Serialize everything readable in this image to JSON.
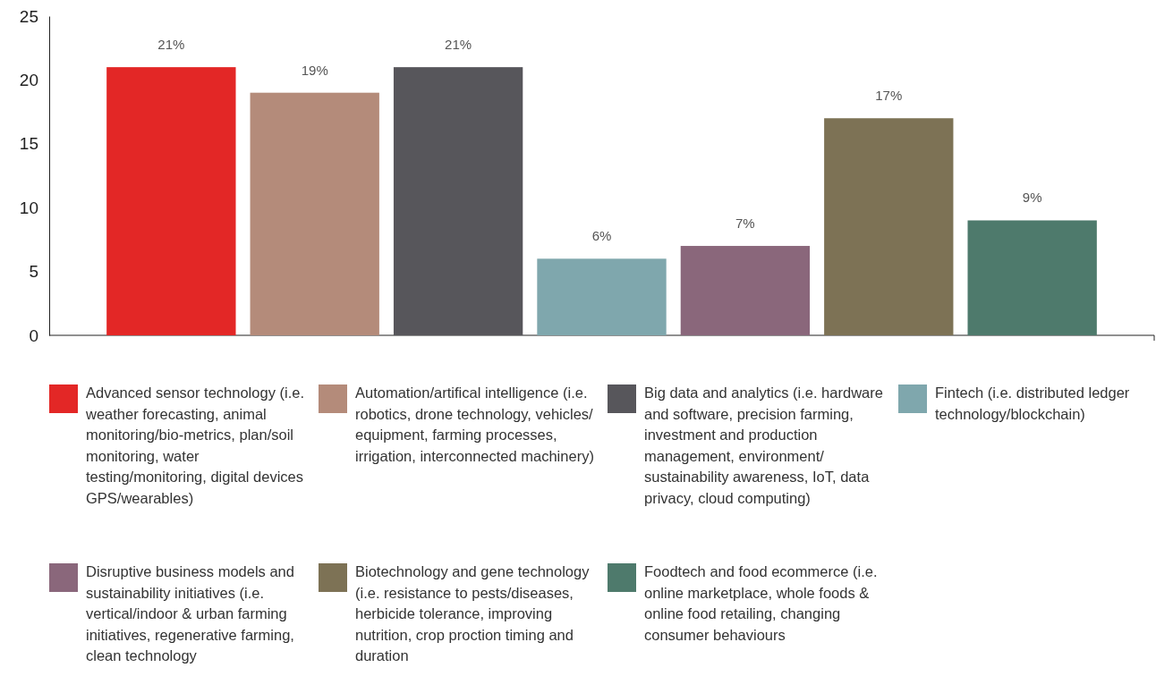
{
  "chart_data": {
    "type": "bar",
    "categories": [
      null,
      null,
      null,
      null,
      null,
      null,
      null
    ],
    "ylim": [
      0,
      25
    ],
    "yticks": [
      0,
      5,
      10,
      15,
      20,
      25
    ],
    "grid": false,
    "legend": "bottom",
    "data_labels": true,
    "series": [
      {
        "name": "Advanced sensor technology (i.e. weather forecasting, animal monitoring/bio-metrics, plan/soil monitoring, water testing/monitoring, digital devices GPS/wearables)",
        "color": "#e32726",
        "values": [
          21,
          null,
          null,
          null,
          null,
          null,
          null
        ],
        "value_labels": [
          "21%",
          null,
          null,
          null,
          null,
          null,
          null
        ]
      },
      {
        "name": "Automation/artifical intelligence (i.e. robotics, drone technology, vehicles/ equipment, farming processes, irrigation, interconnected machinery)",
        "color": "#b48b7a",
        "values": [
          null,
          19,
          null,
          null,
          null,
          null,
          null
        ],
        "value_labels": [
          null,
          "19%",
          null,
          null,
          null,
          null,
          null
        ]
      },
      {
        "name": "Big data and analytics (i.e. hardware and software, precision farming, investment and production management, environment/ sustainability awareness, IoT, data privacy, cloud computing)",
        "color": "#57565b",
        "values": [
          null,
          null,
          21,
          null,
          null,
          null,
          null
        ],
        "value_labels": [
          null,
          null,
          "21%",
          null,
          null,
          null,
          null
        ]
      },
      {
        "name": "Fintech (i.e. distributed ledger technology/blockchain)",
        "color": "#7fa7ad",
        "values": [
          null,
          null,
          null,
          6,
          null,
          null,
          null
        ],
        "value_labels": [
          null,
          null,
          null,
          "6%",
          null,
          null,
          null
        ]
      },
      {
        "name": "Disruptive business models and sustainability initiatives (i.e. vertical/indoor & urban farming initiatives, regenerative farming, clean technology",
        "color": "#8a677b",
        "values": [
          null,
          null,
          null,
          null,
          7,
          null,
          null
        ],
        "value_labels": [
          null,
          null,
          null,
          null,
          "7%",
          null,
          null
        ]
      },
      {
        "name": "Biotechnology and gene technology (i.e. resistance to pests/diseases, herbicide tolerance, improving nutrition, crop proction timing and duration",
        "color": "#7d7255",
        "values": [
          null,
          null,
          null,
          null,
          null,
          17,
          null
        ],
        "value_labels": [
          null,
          null,
          null,
          null,
          null,
          "17%",
          null
        ]
      },
      {
        "name": "Foodtech and food ecommerce (i.e. online marketplace, whole foods & online food retailing, changing consumer behaviours",
        "color": "#4e7a6c",
        "values": [
          null,
          null,
          null,
          null,
          null,
          null,
          9
        ],
        "value_labels": [
          null,
          null,
          null,
          null,
          null,
          null,
          "9%"
        ]
      }
    ]
  }
}
